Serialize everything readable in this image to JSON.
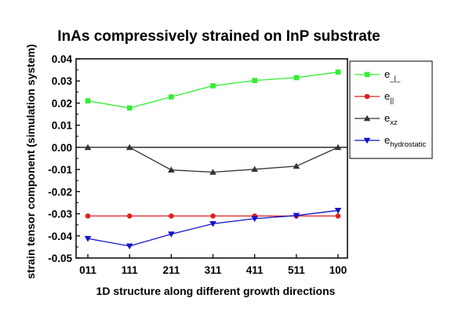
{
  "chart_data": {
    "type": "line",
    "title": "InAs compressively strained on InP substrate",
    "xlabel": "1D structure along different growth directions",
    "ylabel": "strain tensor component (simulation system)",
    "categories": [
      "011",
      "111",
      "211",
      "311",
      "411",
      "511",
      "100"
    ],
    "ylim": [
      -0.05,
      0.04
    ],
    "yticks": [
      -0.05,
      -0.04,
      -0.03,
      -0.02,
      -0.01,
      0.0,
      0.01,
      0.02,
      0.03,
      0.04
    ],
    "ytick_labels": [
      "-0.05",
      "-0.04",
      "-0.03",
      "-0.02",
      "-0.01",
      "0.00",
      "0.01",
      "0.02",
      "0.03",
      "0.04"
    ],
    "grid": false,
    "zero_line": true,
    "legend_position": "top-right",
    "series": [
      {
        "name": "e⊥",
        "legend": {
          "base": "e",
          "sub": "_|_"
        },
        "color": "#33ee33",
        "marker": "square",
        "values": [
          0.021,
          0.0178,
          0.0228,
          0.0278,
          0.0302,
          0.0315,
          0.034
        ]
      },
      {
        "name": "e∥",
        "legend": {
          "base": "e",
          "sub": "||"
        },
        "color": "#dd2222",
        "marker": "circle",
        "values": [
          -0.031,
          -0.031,
          -0.031,
          -0.031,
          -0.031,
          -0.031,
          -0.031
        ]
      },
      {
        "name": "exz",
        "legend": {
          "base": "e",
          "sub": "xz"
        },
        "color": "#333333",
        "marker": "triangle-up",
        "values": [
          0.0,
          0.0,
          -0.0102,
          -0.0112,
          -0.0099,
          -0.0085,
          0.0
        ]
      },
      {
        "name": "ehydrostatic",
        "legend": {
          "base": "e",
          "sub": "hydrostatic"
        },
        "color": "#1111cc",
        "marker": "triangle-down",
        "values": [
          -0.0412,
          -0.0446,
          -0.0392,
          -0.0345,
          -0.0322,
          -0.0308,
          -0.0285
        ]
      }
    ]
  }
}
